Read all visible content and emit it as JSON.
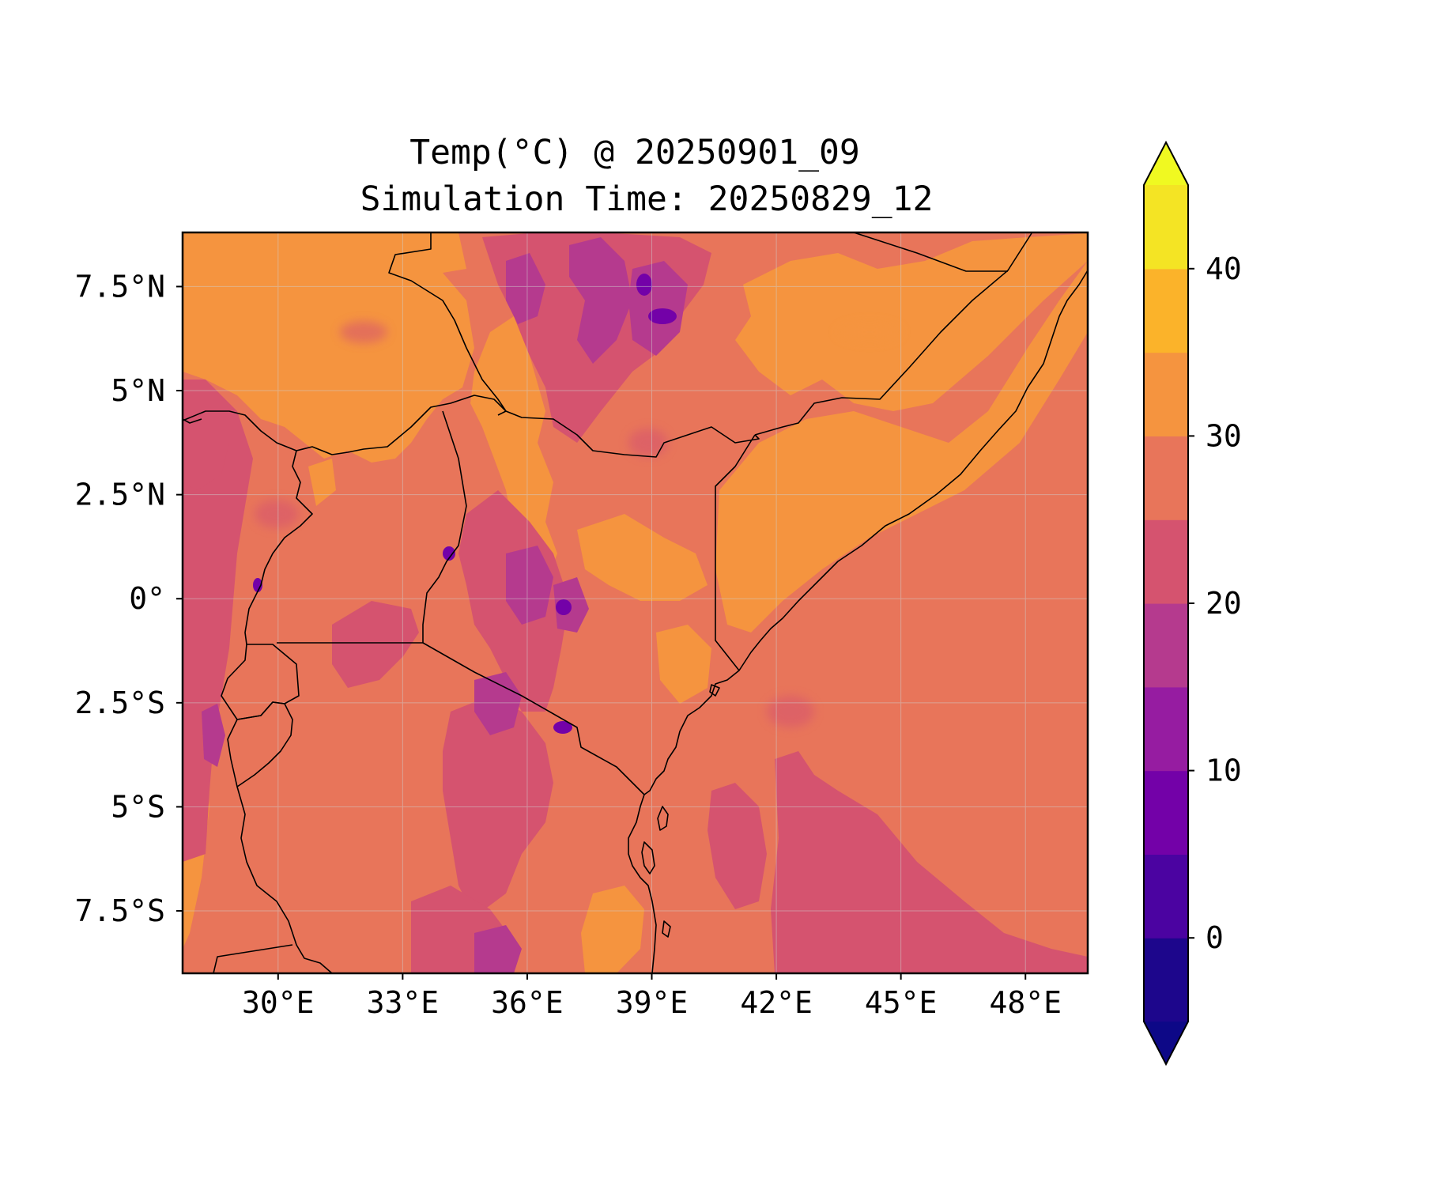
{
  "title": {
    "line1": "Temp(°C) @ 20250901_09",
    "line2": "Simulation Time: 20250829_12"
  },
  "map": {
    "region": "East Africa",
    "lon_range": [
      27.7,
      49.5
    ],
    "lat_range": [
      -9.0,
      8.8
    ],
    "x_ticks": [
      {
        "value": 30,
        "label": "30°E"
      },
      {
        "value": 33,
        "label": "33°E"
      },
      {
        "value": 36,
        "label": "36°E"
      },
      {
        "value": 39,
        "label": "39°E"
      },
      {
        "value": 42,
        "label": "42°E"
      },
      {
        "value": 45,
        "label": "45°E"
      },
      {
        "value": 48,
        "label": "48°E"
      }
    ],
    "y_ticks": [
      {
        "value": 7.5,
        "label": "7.5°N"
      },
      {
        "value": 5,
        "label": "5°N"
      },
      {
        "value": 2.5,
        "label": "2.5°N"
      },
      {
        "value": 0,
        "label": "0°"
      },
      {
        "value": -2.5,
        "label": "2.5°S"
      },
      {
        "value": -5,
        "label": "5°S"
      },
      {
        "value": -7.5,
        "label": "7.5°S"
      }
    ],
    "grid": true,
    "colors": {
      "background_fill": "#e8755a",
      "level_25_30": "#e8755a",
      "level_30_35": "#f5943f",
      "level_20_25": "#d5536f",
      "level_15_20": "#b53a8e",
      "level_10_15": "#961da3",
      "level_5_10": "#6a00a8",
      "border": "#000000",
      "grid": "#cfcfcf"
    }
  },
  "colorbar": {
    "vmin": -5,
    "vmax": 45,
    "extend": "both",
    "levels": [
      {
        "from": -5,
        "to": 0,
        "color": "#1d068c"
      },
      {
        "from": 0,
        "to": 5,
        "color": "#4b03a1"
      },
      {
        "from": 5,
        "to": 10,
        "color": "#7301a8"
      },
      {
        "from": 10,
        "to": 15,
        "color": "#961ca1"
      },
      {
        "from": 15,
        "to": 20,
        "color": "#b53a8e"
      },
      {
        "from": 20,
        "to": 25,
        "color": "#d5536f"
      },
      {
        "from": 25,
        "to": 30,
        "color": "#e8755a"
      },
      {
        "from": 30,
        "to": 35,
        "color": "#f5943f"
      },
      {
        "from": 35,
        "to": 40,
        "color": "#fbb32a"
      },
      {
        "from": 40,
        "to": 45,
        "color": "#f4e424"
      }
    ],
    "under_color": "#0d0887",
    "over_color": "#f0f921",
    "ticks": [
      {
        "value": 0,
        "label": "0"
      },
      {
        "value": 10,
        "label": "10"
      },
      {
        "value": 20,
        "label": "20"
      },
      {
        "value": 30,
        "label": "30"
      },
      {
        "value": 40,
        "label": "40"
      }
    ]
  }
}
